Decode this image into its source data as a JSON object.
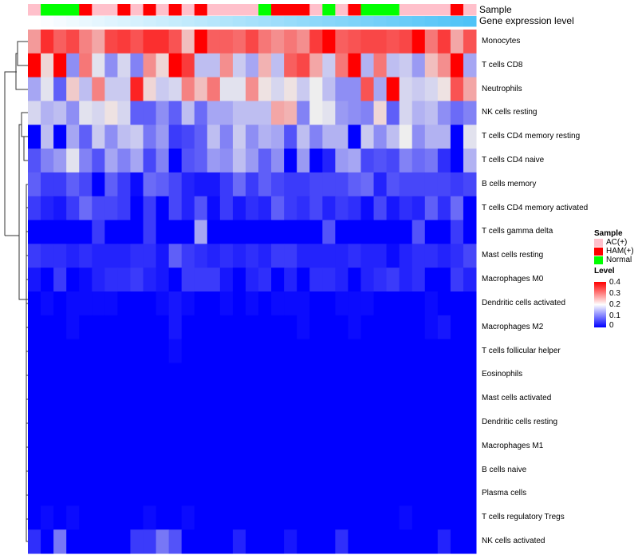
{
  "chart_data": {
    "type": "heatmap",
    "title": "",
    "annotation_labels": {
      "sample": "Sample",
      "gene": "Gene expression level"
    },
    "samples": [
      "AC(+)",
      "Normal",
      "Normal",
      "Normal",
      "HAM(+)",
      "AC(+)",
      "AC(+)",
      "HAM(+)",
      "AC(+)",
      "HAM(+)",
      "AC(+)",
      "HAM(+)",
      "AC(+)",
      "HAM(+)",
      "AC(+)",
      "AC(+)",
      "AC(+)",
      "AC(+)",
      "Normal",
      "HAM(+)",
      "HAM(+)",
      "HAM(+)",
      "AC(+)",
      "Normal",
      "AC(+)",
      "HAM(+)",
      "Normal",
      "Normal",
      "Normal",
      "AC(+)",
      "AC(+)",
      "AC(+)",
      "AC(+)",
      "HAM(+)",
      "AC(+)"
    ],
    "rows": [
      "Monocytes",
      "T cells CD8",
      "Neutrophils",
      "NK cells resting",
      "T cells CD4 memory resting",
      "T cells CD4 naive",
      "B cells memory",
      "T cells CD4 memory activated",
      "T cells gamma delta",
      "Mast cells resting",
      "Macrophages M0",
      "Dendritic cells activated",
      "Macrophages M2",
      "T cells follicular helper",
      "Eosinophils",
      "Mast cells activated",
      "Dendritic cells resting",
      "Macrophages M1",
      "B cells naive",
      "Plasma cells",
      "T cells regulatory  Tregs",
      "NK cells activated"
    ],
    "values": [
      [
        0.27,
        0.36,
        0.32,
        0.34,
        0.29,
        0.26,
        0.34,
        0.35,
        0.33,
        0.36,
        0.36,
        0.33,
        0.24,
        0.4,
        0.32,
        0.32,
        0.31,
        0.34,
        0.3,
        0.28,
        0.3,
        0.28,
        0.35,
        0.4,
        0.32,
        0.33,
        0.34,
        0.34,
        0.33,
        0.34,
        0.4,
        0.3,
        0.35,
        0.26,
        0.33
      ],
      [
        0.4,
        0.22,
        0.4,
        0.12,
        0.3,
        0.19,
        0.12,
        0.18,
        0.11,
        0.28,
        0.22,
        0.4,
        0.35,
        0.16,
        0.16,
        0.28,
        0.17,
        0.14,
        0.25,
        0.16,
        0.32,
        0.34,
        0.26,
        0.17,
        0.3,
        0.4,
        0.15,
        0.3,
        0.16,
        0.17,
        0.13,
        0.24,
        0.28,
        0.4,
        0.14
      ],
      [
        0.14,
        0.19,
        0.08,
        0.23,
        0.16,
        0.29,
        0.17,
        0.17,
        0.37,
        0.22,
        0.17,
        0.18,
        0.29,
        0.24,
        0.3,
        0.19,
        0.19,
        0.28,
        0.21,
        0.18,
        0.21,
        0.17,
        0.2,
        0.16,
        0.12,
        0.12,
        0.33,
        0.14,
        0.4,
        0.18,
        0.17,
        0.18,
        0.21,
        0.33,
        0.26
      ],
      [
        0.18,
        0.15,
        0.16,
        0.12,
        0.19,
        0.18,
        0.21,
        0.18,
        0.08,
        0.08,
        0.12,
        0.08,
        0.16,
        0.09,
        0.14,
        0.14,
        0.16,
        0.16,
        0.16,
        0.26,
        0.25,
        0.11,
        0.2,
        0.19,
        0.13,
        0.12,
        0.11,
        0.22,
        0.08,
        0.18,
        0.15,
        0.16,
        0.12,
        0.09,
        0.11
      ],
      [
        0,
        0.16,
        0,
        0.14,
        0.08,
        0.17,
        0.12,
        0.16,
        0.17,
        0.1,
        0.13,
        0.05,
        0.06,
        0.08,
        0.16,
        0.11,
        0.17,
        0.12,
        0.15,
        0.14,
        0.07,
        0.16,
        0.11,
        0.15,
        0.15,
        0,
        0.17,
        0.12,
        0.16,
        0.2,
        0.12,
        0.15,
        0.15,
        0,
        0.19
      ],
      [
        0.07,
        0.11,
        0.13,
        0.19,
        0.11,
        0.07,
        0.14,
        0.11,
        0.14,
        0.06,
        0.11,
        0,
        0.07,
        0.08,
        0.13,
        0.12,
        0.16,
        0.13,
        0.08,
        0.12,
        0,
        0.13,
        0,
        0.03,
        0.13,
        0.14,
        0.06,
        0.07,
        0.06,
        0.11,
        0.09,
        0.1,
        0.04,
        0,
        0.15
      ],
      [
        0.08,
        0.05,
        0.05,
        0.08,
        0.06,
        0,
        0.08,
        0.05,
        0.01,
        0.09,
        0.08,
        0.06,
        0.03,
        0.02,
        0.02,
        0.05,
        0.09,
        0.05,
        0.08,
        0.06,
        0.05,
        0.05,
        0.06,
        0.06,
        0.06,
        0.08,
        0.09,
        0.03,
        0.07,
        0.06,
        0.06,
        0.06,
        0.06,
        0.05,
        0.06
      ],
      [
        0.05,
        0.03,
        0.02,
        0.05,
        0.09,
        0.06,
        0.06,
        0.05,
        0,
        0.05,
        0,
        0.06,
        0.03,
        0.07,
        0.01,
        0.05,
        0.02,
        0.04,
        0.03,
        0.08,
        0.05,
        0.04,
        0.06,
        0.03,
        0.05,
        0.04,
        0.01,
        0.06,
        0.02,
        0.04,
        0.03,
        0.08,
        0.04,
        0.09,
        0
      ],
      [
        0,
        0,
        0,
        0,
        0,
        0.05,
        0,
        0,
        0,
        0.05,
        0,
        0,
        0,
        0.14,
        0,
        0,
        0,
        0,
        0,
        0,
        0,
        0,
        0,
        0.07,
        0,
        0,
        0,
        0,
        0,
        0,
        0.07,
        0,
        0,
        0.05,
        0
      ],
      [
        0.05,
        0.04,
        0.04,
        0.03,
        0.04,
        0.03,
        0.03,
        0.03,
        0.04,
        0.04,
        0.02,
        0.08,
        0.05,
        0.04,
        0.03,
        0.04,
        0.03,
        0.04,
        0.03,
        0.05,
        0.05,
        0.03,
        0.03,
        0.03,
        0.03,
        0.04,
        0.03,
        0.03,
        0.01,
        0.03,
        0.04,
        0.04,
        0.03,
        0.04,
        0.06
      ],
      [
        0.02,
        0,
        0.05,
        0,
        0.01,
        0.03,
        0.04,
        0.04,
        0.05,
        0.03,
        0.02,
        0,
        0.05,
        0.05,
        0.05,
        0.02,
        0,
        0.03,
        0.04,
        0,
        0.03,
        0,
        0.04,
        0.04,
        0.03,
        0,
        0.03,
        0.04,
        0.05,
        0.03,
        0.04,
        0,
        0,
        0.05,
        0.03
      ],
      [
        0,
        0.01,
        0,
        0.01,
        0.01,
        0.01,
        0.01,
        0,
        0,
        0,
        0.01,
        0.02,
        0.01,
        0,
        0,
        0.01,
        0,
        0.01,
        0,
        0.01,
        0.01,
        0.01,
        0,
        0,
        0.01,
        0.01,
        0.01,
        0,
        0,
        0,
        0,
        0.01,
        0,
        0,
        0
      ],
      [
        0,
        0,
        0,
        0.01,
        0,
        0,
        0,
        0,
        0,
        0,
        0,
        0.02,
        0,
        0,
        0,
        0,
        0,
        0,
        0,
        0,
        0,
        0.01,
        0,
        0,
        0,
        0.01,
        0,
        0,
        0,
        0,
        0,
        0.01,
        0.02,
        0,
        0
      ],
      [
        0,
        0,
        0,
        0,
        0,
        0,
        0,
        0,
        0,
        0,
        0,
        0.01,
        0,
        0,
        0,
        0,
        0,
        0,
        0,
        0,
        0,
        0,
        0,
        0,
        0,
        0,
        0,
        0,
        0,
        0,
        0,
        0,
        0,
        0,
        0
      ],
      [
        0,
        0,
        0,
        0,
        0,
        0,
        0,
        0,
        0,
        0,
        0,
        0,
        0,
        0,
        0,
        0,
        0,
        0,
        0,
        0,
        0,
        0,
        0,
        0,
        0,
        0,
        0,
        0,
        0,
        0,
        0,
        0,
        0,
        0,
        0
      ],
      [
        0,
        0,
        0,
        0,
        0,
        0,
        0,
        0,
        0,
        0,
        0,
        0,
        0,
        0,
        0,
        0,
        0,
        0,
        0,
        0,
        0,
        0,
        0,
        0,
        0,
        0,
        0,
        0,
        0,
        0,
        0,
        0,
        0,
        0,
        0
      ],
      [
        0,
        0,
        0,
        0,
        0,
        0,
        0,
        0,
        0,
        0,
        0,
        0,
        0,
        0,
        0,
        0,
        0,
        0,
        0,
        0,
        0,
        0,
        0,
        0,
        0,
        0,
        0,
        0,
        0,
        0,
        0,
        0,
        0,
        0,
        0
      ],
      [
        0,
        0,
        0,
        0,
        0,
        0,
        0,
        0,
        0,
        0,
        0,
        0,
        0,
        0,
        0,
        0,
        0,
        0,
        0,
        0,
        0,
        0,
        0,
        0,
        0,
        0,
        0,
        0,
        0,
        0,
        0,
        0,
        0,
        0,
        0
      ],
      [
        0,
        0,
        0,
        0,
        0,
        0,
        0,
        0,
        0,
        0,
        0,
        0,
        0,
        0,
        0,
        0,
        0,
        0,
        0,
        0,
        0,
        0,
        0,
        0,
        0,
        0,
        0,
        0,
        0,
        0,
        0,
        0,
        0,
        0,
        0
      ],
      [
        0,
        0,
        0,
        0,
        0,
        0,
        0,
        0,
        0,
        0,
        0,
        0,
        0,
        0,
        0,
        0,
        0,
        0,
        0,
        0,
        0,
        0,
        0,
        0,
        0,
        0,
        0,
        0,
        0,
        0,
        0,
        0,
        0,
        0,
        0
      ],
      [
        0,
        0.01,
        0,
        0.01,
        0,
        0,
        0,
        0,
        0,
        0.01,
        0,
        0,
        0.01,
        0,
        0,
        0,
        0,
        0,
        0,
        0,
        0,
        0,
        0,
        0,
        0,
        0,
        0,
        0,
        0,
        0.01,
        0,
        0,
        0,
        0,
        0
      ],
      [
        0.04,
        0,
        0.1,
        0,
        0,
        0,
        0,
        0,
        0.05,
        0.05,
        0.1,
        0.07,
        0,
        0,
        0,
        0,
        0.03,
        0,
        0,
        0,
        0.02,
        0,
        0,
        0,
        0.04,
        0,
        0,
        0,
        0,
        0,
        0,
        0,
        0.03,
        0,
        0
      ]
    ],
    "sample_colors": {
      "AC(+)": "#FFC0CB",
      "HAM(+)": "#FF0000",
      "Normal": "#00FF00"
    },
    "gene_gradient": [
      "#FFFFFF",
      "#4FC3F7"
    ],
    "color_scale": {
      "low": "#0000FF",
      "mid": "#FFFFFF",
      "high": "#FF0000",
      "range": [
        0,
        0.4
      ]
    },
    "legend": {
      "sample_title": "Sample",
      "sample_entries": [
        "AC(+)",
        "HAM(+)",
        "Normal"
      ],
      "level_title": "Level",
      "level_ticks": [
        "0.4",
        "0.3",
        "0.2",
        "0.1",
        "0"
      ]
    }
  }
}
